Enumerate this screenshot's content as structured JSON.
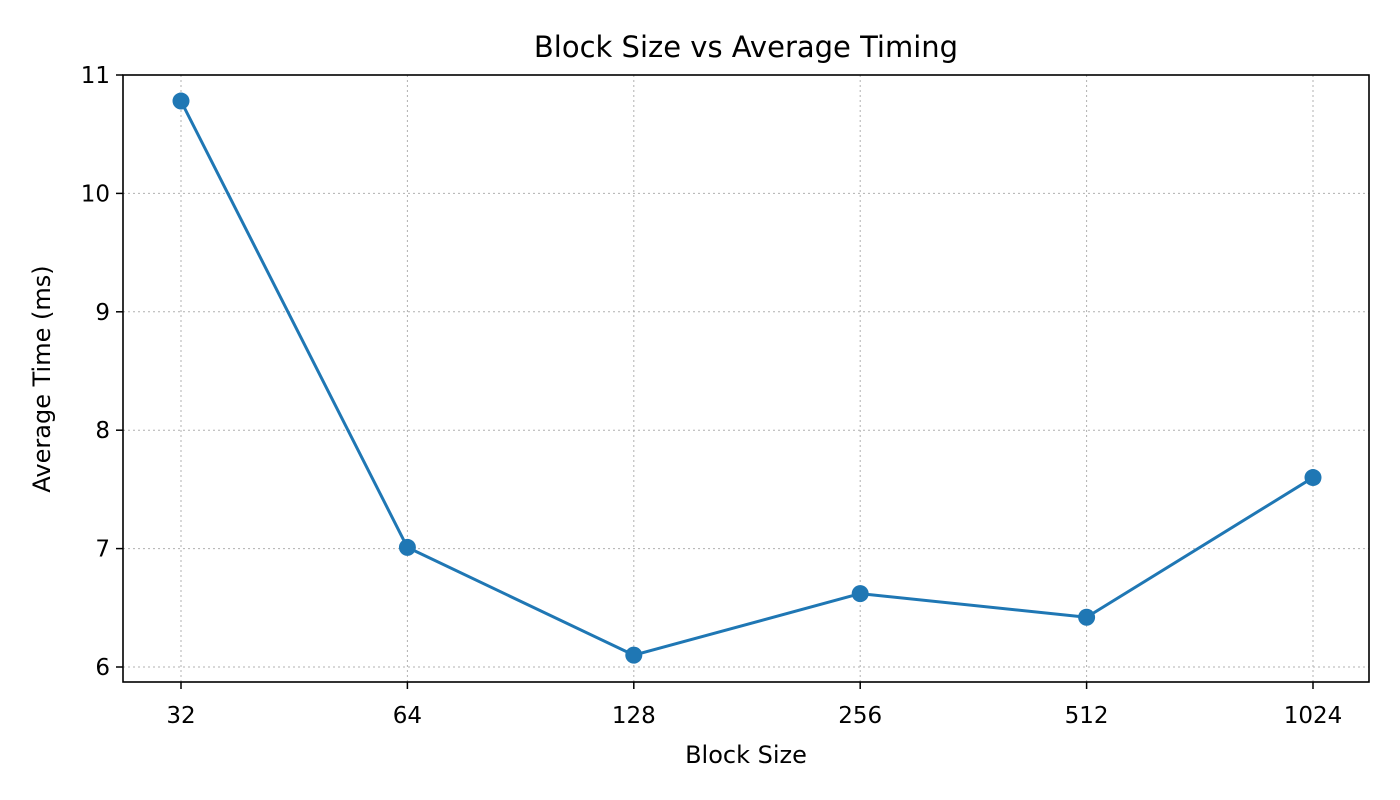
{
  "chart_data": {
    "type": "line",
    "title": "Block Size vs Average Timing",
    "xlabel": "Block Size",
    "ylabel": "Average Time (ms)",
    "x_scale": "categorical",
    "categories": [
      "32",
      "64",
      "128",
      "256",
      "512",
      "1024"
    ],
    "series": [
      {
        "values": [
          10.78,
          7.01,
          6.1,
          6.62,
          6.42,
          7.6
        ],
        "color": "#1f77b4",
        "marker": "circle"
      }
    ],
    "yticks": [
      6,
      7,
      8,
      9,
      10,
      11
    ],
    "ytick_labels": [
      "6",
      "7",
      "8",
      "9",
      "10",
      "11"
    ],
    "ylim": [
      5.86,
      11.0
    ],
    "grid": true,
    "legend": false
  }
}
